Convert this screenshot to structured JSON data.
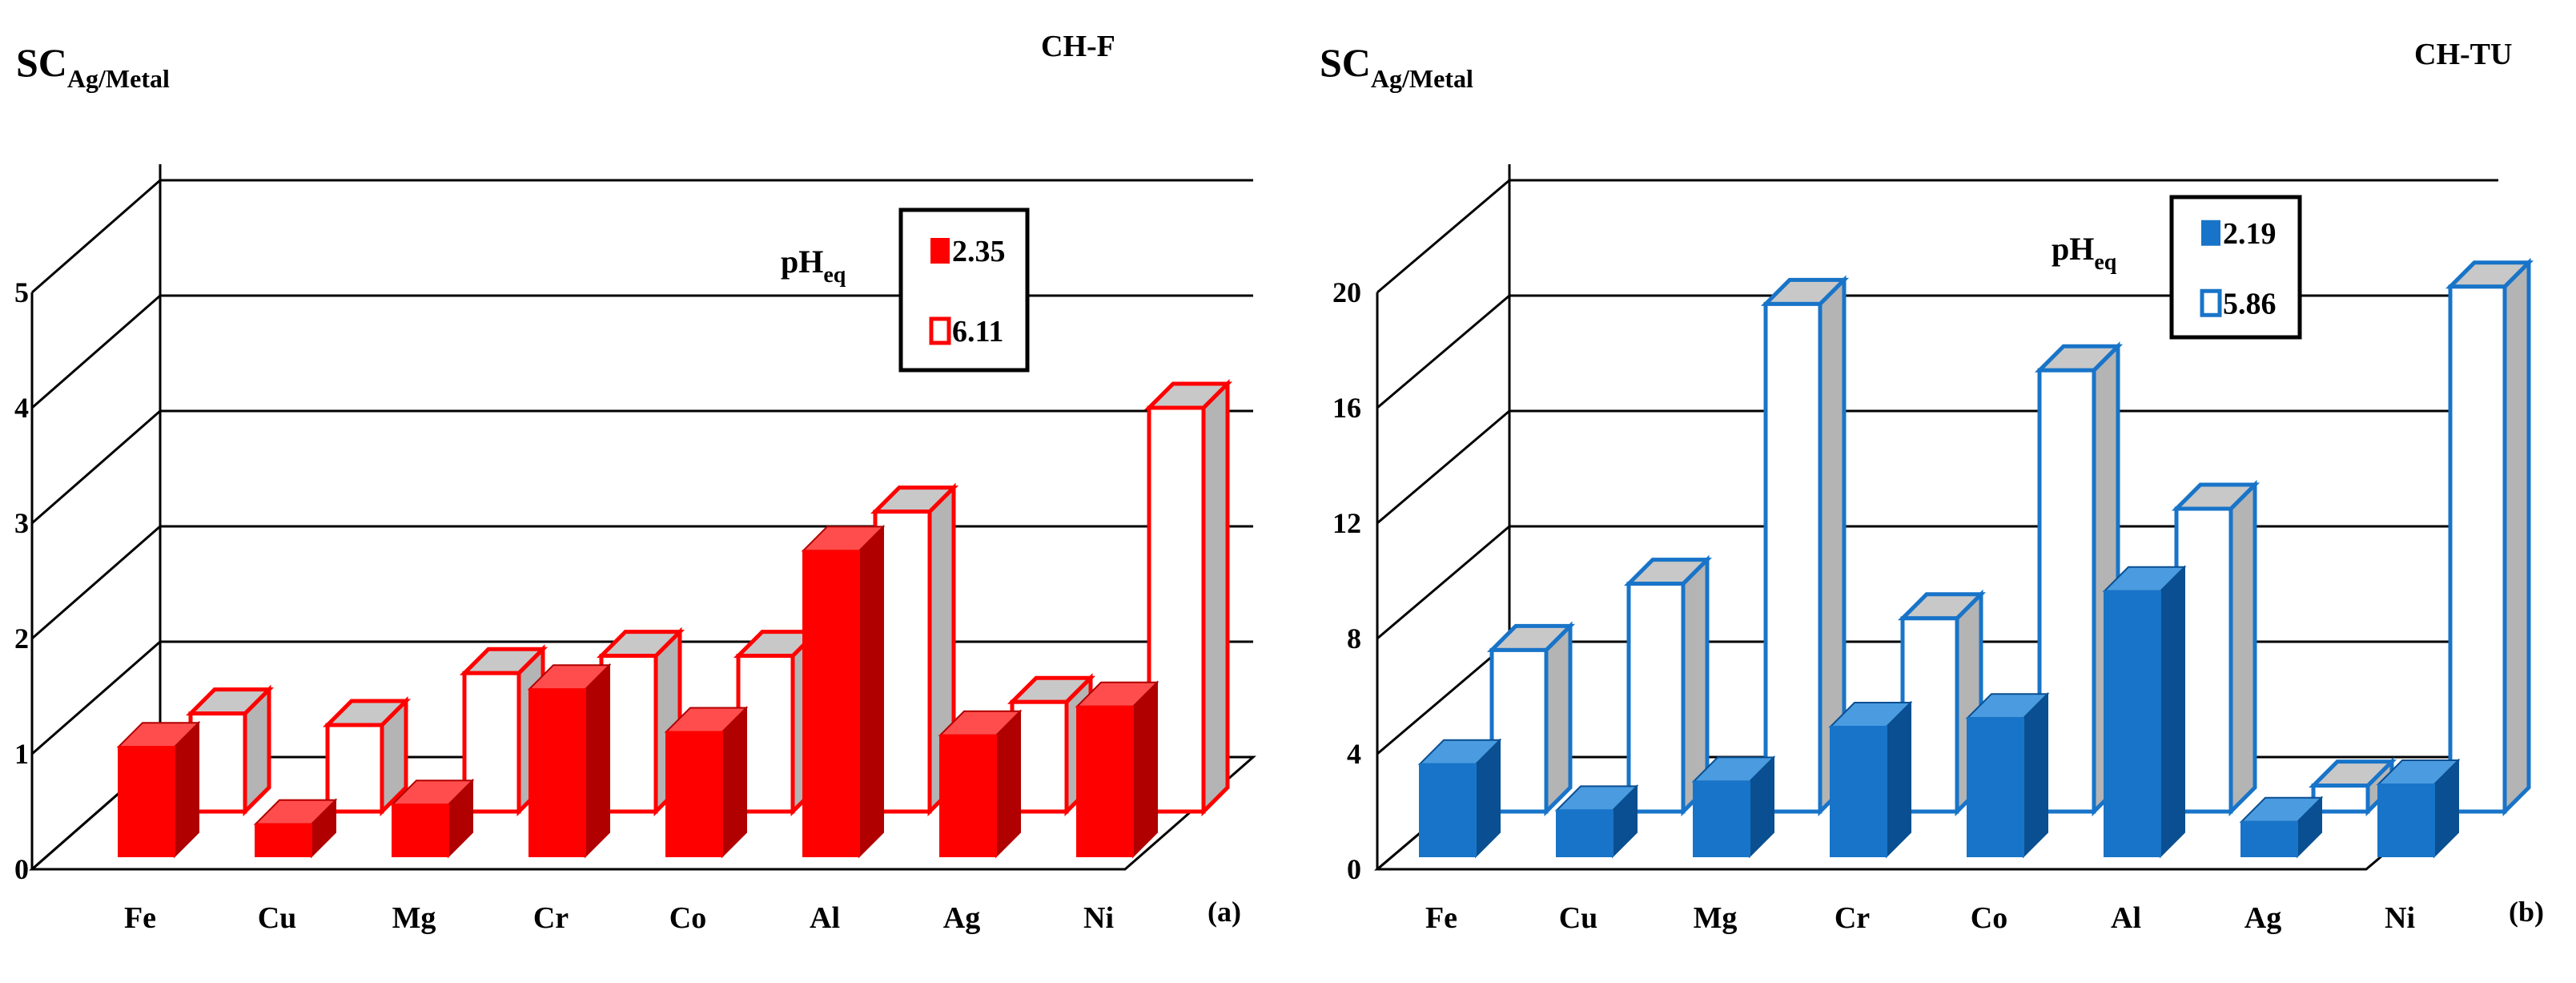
{
  "chart_data": [
    {
      "type": "bar",
      "subtype": "3d-column-two-rows",
      "panel": "(a)",
      "tag": "CH-F",
      "ylabel": {
        "main": "SC",
        "sub": "Ag/Metal"
      },
      "categories": [
        "Fe",
        "Cu",
        "Mg",
        "Cr",
        "Co",
        "Al",
        "Ag",
        "Ni"
      ],
      "ylim": [
        0,
        5
      ],
      "yticks": [
        0,
        1,
        2,
        3,
        4,
        5
      ],
      "legend": {
        "title_main": "pH",
        "title_sub": "eq",
        "placement": "top-right"
      },
      "series": [
        {
          "name": "2.35",
          "style": "filled",
          "row": "front",
          "values": [
            0.95,
            0.28,
            0.45,
            1.45,
            1.08,
            2.65,
            1.05,
            1.3
          ]
        },
        {
          "name": "6.11",
          "style": "hollow",
          "row": "back",
          "values": [
            0.85,
            0.75,
            1.2,
            1.35,
            1.35,
            2.6,
            0.95,
            3.5
          ]
        }
      ],
      "colors": {
        "main": "#ff0000",
        "dark": "#b00000",
        "top_light": "#ff4d4d",
        "hollow_top": "#c8c8c8",
        "hollow_side": "#b4b4b4"
      }
    },
    {
      "type": "bar",
      "subtype": "3d-column-two-rows",
      "panel": "(b)",
      "tag": "CH-TU",
      "ylabel": {
        "main": "SC",
        "sub": "Ag/Metal"
      },
      "categories": [
        "Fe",
        "Cu",
        "Mg",
        "Cr",
        "Co",
        "Al",
        "Ag",
        "Ni"
      ],
      "ylim": [
        0,
        20
      ],
      "yticks": [
        0,
        4,
        8,
        12,
        16,
        20
      ],
      "legend": {
        "title_main": "pH",
        "title_sub": "eq",
        "placement": "top-right"
      },
      "series": [
        {
          "name": "2.19",
          "style": "filled",
          "row": "front",
          "values": [
            3.2,
            1.6,
            2.6,
            4.5,
            4.8,
            9.2,
            1.2,
            2.5
          ]
        },
        {
          "name": "5.86",
          "style": "hollow",
          "row": "back",
          "values": [
            5.6,
            7.9,
            17.6,
            6.7,
            15.3,
            10.5,
            0.9,
            18.2
          ]
        }
      ],
      "colors": {
        "main": "#1874c8",
        "dark": "#0a4f91",
        "top_light": "#4a9be0",
        "hollow_top": "#c8c8c8",
        "hollow_side": "#b4b4b4"
      }
    }
  ]
}
